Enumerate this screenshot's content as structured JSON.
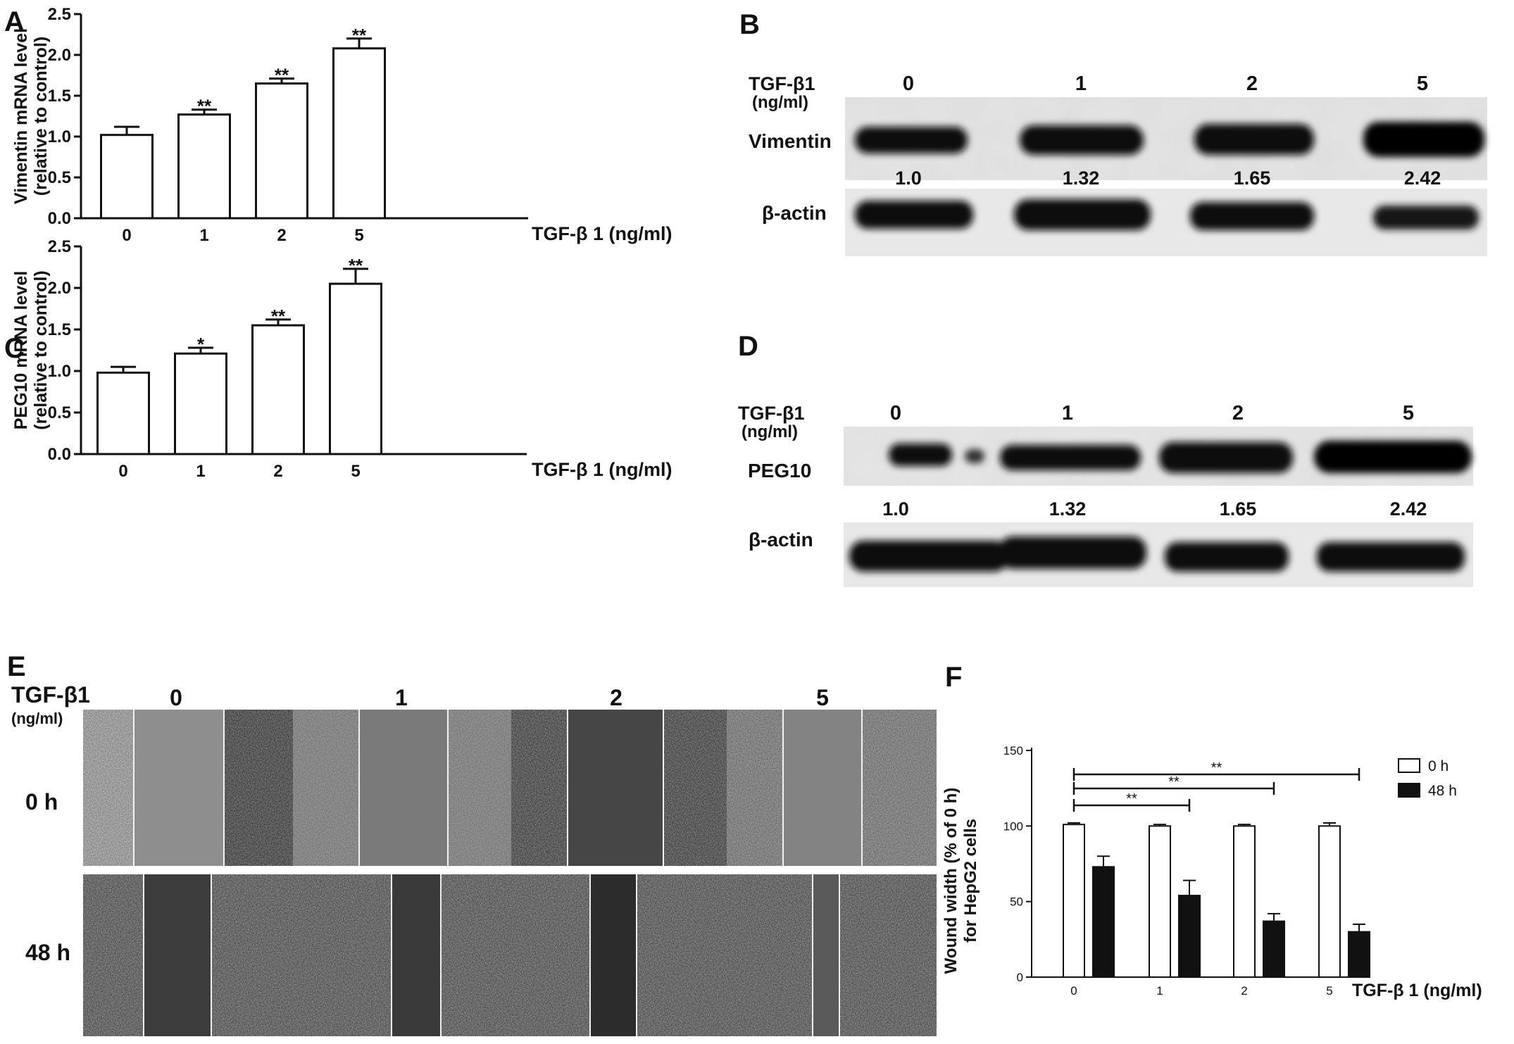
{
  "panels": {
    "A": {
      "letter": "A"
    },
    "B": {
      "letter": "B",
      "row_label_1": "TGF-β1",
      "row_label_2": "(ng/ml)",
      "lanes": [
        "0",
        "1",
        "2",
        "5"
      ],
      "band_top": "Vimentin",
      "band_bottom": "β-actin",
      "ratios": [
        "1.0",
        "1.32",
        "1.65",
        "2.42"
      ]
    },
    "C": {
      "letter": "C"
    },
    "D": {
      "letter": "D",
      "row_label_1": "TGF-β1",
      "row_label_2": "(ng/ml)",
      "lanes": [
        "0",
        "1",
        "2",
        "5"
      ],
      "band_top": "PEG10",
      "band_bottom": "β-actin",
      "ratios": [
        "1.0",
        "1.32",
        "1.65",
        "2.42"
      ]
    },
    "E": {
      "letter": "E",
      "row_label_1": "TGF-β1",
      "row_label_2": "(ng/ml)",
      "columns": [
        "0",
        "1",
        "2",
        "5"
      ],
      "rows": [
        "0 h",
        "48 h"
      ]
    },
    "F": {
      "letter": "F"
    }
  },
  "chart_data": [
    {
      "id": "A",
      "type": "bar",
      "categories": [
        "0",
        "1",
        "2",
        "5"
      ],
      "values": [
        1.02,
        1.27,
        1.65,
        2.08
      ],
      "errors": [
        0.1,
        0.06,
        0.06,
        0.12
      ],
      "significance": [
        "",
        "**",
        "**",
        "**"
      ],
      "ylabel": "Vimentin mRNA level",
      "ylabel2": "(relative to control)",
      "xlabel": "TGF-β 1 (ng/ml)",
      "ylim": [
        0,
        2.5
      ],
      "yticks": [
        "0.0",
        "0.5",
        "1.0",
        "1.5",
        "2.0",
        "2.5"
      ]
    },
    {
      "id": "C",
      "type": "bar",
      "categories": [
        "0",
        "1",
        "2",
        "5"
      ],
      "values": [
        0.98,
        1.21,
        1.55,
        2.05
      ],
      "errors": [
        0.07,
        0.07,
        0.07,
        0.18
      ],
      "significance": [
        "",
        "*",
        "**",
        "**"
      ],
      "ylabel": "PEG10 mRNA level",
      "ylabel2": "(relative to control)",
      "xlabel": "TGF-β 1 (ng/ml)",
      "ylim": [
        0,
        2.5
      ],
      "yticks": [
        "0.0",
        "0.5",
        "1.0",
        "1.5",
        "2.0",
        "2.5"
      ]
    },
    {
      "id": "F",
      "type": "bar",
      "categories": [
        "0",
        "1",
        "2",
        "5"
      ],
      "series": [
        {
          "name": "0 h",
          "values": [
            101,
            100,
            100,
            100
          ],
          "errors": [
            1,
            1,
            1,
            2
          ],
          "color": "#ffffff"
        },
        {
          "name": "48 h",
          "values": [
            73,
            54,
            37,
            30
          ],
          "errors": [
            7,
            10,
            5,
            5
          ],
          "color": "#111111"
        }
      ],
      "comparisons": [
        {
          "from": "0",
          "to": "1",
          "label": "**"
        },
        {
          "from": "0",
          "to": "2",
          "label": "**"
        },
        {
          "from": "0",
          "to": "5",
          "label": "**"
        }
      ],
      "ylabel": "Wound width (% of 0 h)",
      "ylabel2": "for HepG2 cells",
      "xlabel": "TGF-β 1 (ng/ml)",
      "ylim": [
        0,
        150
      ],
      "yticks": [
        "0",
        "50",
        "100",
        "150"
      ],
      "legend_position": "top-right"
    }
  ]
}
